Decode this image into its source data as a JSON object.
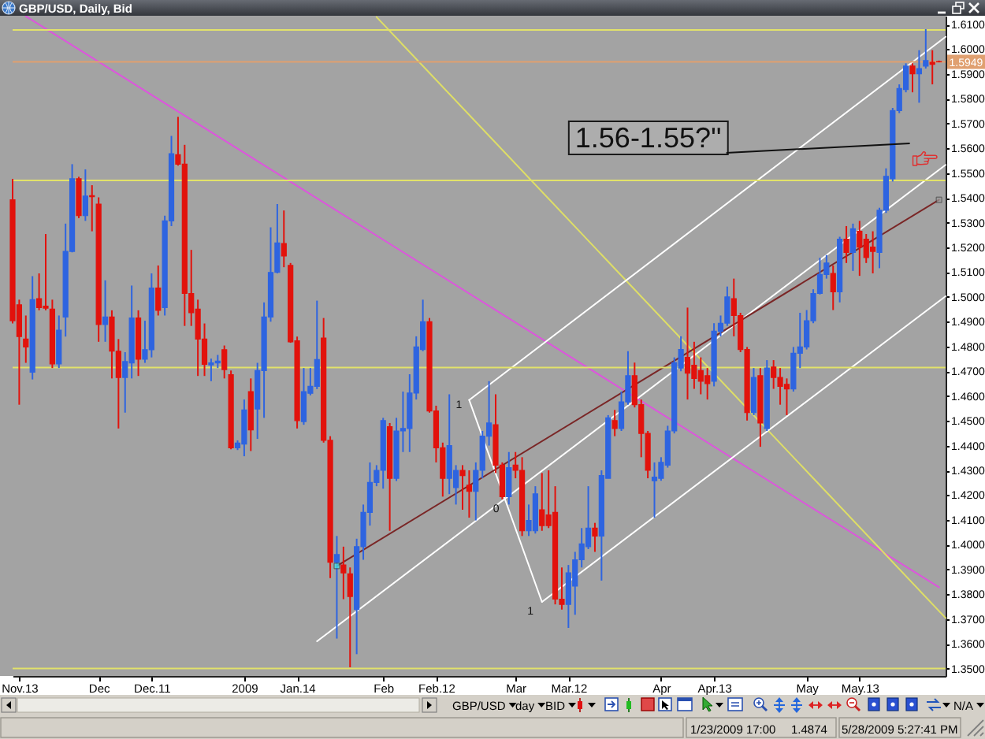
{
  "chart_data": {
    "type": "candlestick",
    "title": "GBP/USD, Daily, Bid",
    "categories": [
      null,
      "Nov.13",
      null,
      null,
      null,
      null,
      null,
      null,
      null,
      null,
      null,
      null,
      null,
      "Dec",
      null,
      null,
      null,
      null,
      null,
      null,
      null,
      "Dec.11",
      null,
      null,
      null,
      null,
      null,
      null,
      null,
      null,
      null,
      null,
      null,
      null,
      null,
      "2009",
      null,
      null,
      null,
      null,
      null,
      null,
      null,
      "Jan.14",
      null,
      null,
      null,
      null,
      null,
      null,
      null,
      null,
      null,
      null,
      null,
      null,
      "Feb",
      null,
      null,
      null,
      null,
      null,
      null,
      null,
      "Feb.12",
      null,
      null,
      null,
      null,
      null,
      null,
      null,
      null,
      null,
      null,
      null,
      "Mar",
      null,
      null,
      null,
      null,
      null,
      null,
      null,
      "Mar.12",
      null,
      null,
      null,
      null,
      null,
      null,
      null,
      null,
      null,
      null,
      null,
      null,
      null,
      "Apr",
      null,
      null,
      null,
      null,
      null,
      null,
      null,
      "Apr.13",
      null,
      null,
      null,
      null,
      null,
      null,
      null,
      null,
      null,
      null,
      null,
      null,
      null,
      "May",
      null,
      null,
      null,
      null,
      null,
      null,
      null,
      "May.13",
      null,
      null,
      null,
      null,
      null,
      null,
      null,
      null,
      null,
      null,
      null,
      null,
      null
    ],
    "ohlc": [
      [
        1.5392,
        1.5477,
        1.4893,
        1.4904
      ],
      [
        1.4968,
        1.4989,
        1.4565,
        1.484
      ],
      [
        1.483,
        1.4925,
        1.4734,
        1.4798
      ],
      [
        1.4696,
        1.5084,
        1.4667,
        1.4989
      ],
      [
        1.4993,
        1.5095,
        1.4946,
        1.4957
      ],
      [
        1.4963,
        1.5254,
        1.4946,
        1.4955
      ],
      [
        1.4951,
        1.4989,
        1.4713,
        1.473
      ],
      [
        1.473,
        1.4925,
        1.4713,
        1.4866
      ],
      [
        1.4919,
        1.5296,
        1.484,
        1.5184
      ],
      [
        1.5184,
        1.5536,
        1.518,
        1.5477
      ],
      [
        1.5477,
        1.5485,
        1.5318,
        1.5328
      ],
      [
        1.5328,
        1.5515,
        1.5307,
        1.5407
      ],
      [
        1.5409,
        1.5451,
        1.5265,
        1.5405
      ],
      [
        1.5375,
        1.5402,
        1.4819,
        1.4889
      ],
      [
        1.4889,
        1.5067,
        1.4819,
        1.4919
      ],
      [
        1.4919,
        1.4946,
        1.4671,
        1.4781
      ],
      [
        1.4781,
        1.483,
        1.4469,
        1.4675
      ],
      [
        1.4675,
        1.4777,
        1.4533,
        1.4739
      ],
      [
        1.4734,
        1.5046,
        1.4671,
        1.4915
      ],
      [
        1.4915,
        1.4946,
        1.4681,
        1.4749
      ],
      [
        1.4749,
        1.4904,
        1.4734,
        1.4787
      ],
      [
        1.4787,
        1.5095,
        1.4756,
        1.5036
      ],
      [
        1.5036,
        1.5127,
        1.4925,
        1.4946
      ],
      [
        1.4957,
        1.5328,
        1.4925,
        1.5307
      ],
      [
        1.5307,
        1.565,
        1.5286,
        1.5578
      ],
      [
        1.5574,
        1.5727,
        1.553,
        1.5536
      ],
      [
        1.5536,
        1.5614,
        1.4883,
        1.5014
      ],
      [
        1.5014,
        1.519,
        1.4883,
        1.4936
      ],
      [
        1.4951,
        1.4989,
        1.4681,
        1.483
      ],
      [
        1.483,
        1.4893,
        1.4681,
        1.4728
      ],
      [
        1.4726,
        1.4751,
        1.466,
        1.4734
      ],
      [
        1.4734,
        1.4766,
        1.4713,
        1.4741
      ],
      [
        1.4787,
        1.4804,
        1.4671,
        1.4707
      ],
      [
        1.4686,
        1.4703,
        1.4385,
        1.4391
      ],
      [
        1.4391,
        1.4421,
        1.4382,
        1.441
      ],
      [
        1.4406,
        1.4586,
        1.4357,
        1.4544
      ],
      [
        1.4618,
        1.4671,
        1.4378,
        1.4463
      ],
      [
        1.4548,
        1.4734,
        1.4427,
        1.4703
      ],
      [
        1.4703,
        1.4978,
        1.4512,
        1.4919
      ],
      [
        1.4919,
        1.5281,
        1.49,
        1.5099
      ],
      [
        1.5099,
        1.5375,
        1.5095,
        1.5218
      ],
      [
        1.5216,
        1.5349,
        1.512,
        1.5165
      ],
      [
        1.5127,
        1.5137,
        1.4815,
        1.4819
      ],
      [
        1.4823,
        1.484,
        1.4469,
        1.4501
      ],
      [
        1.4497,
        1.4713,
        1.4484,
        1.4618
      ],
      [
        1.4611,
        1.4713,
        1.4603,
        1.4639
      ],
      [
        1.4639,
        1.4985,
        1.4628,
        1.4747
      ],
      [
        1.4834,
        1.4915,
        1.4412,
        1.4421
      ],
      [
        1.4421,
        1.4438,
        1.3865,
        1.3929
      ],
      [
        1.3929,
        1.4035,
        1.3621,
        1.396
      ],
      [
        1.3918,
        1.3992,
        1.378,
        1.3886
      ],
      [
        1.3882,
        1.3908,
        1.3505,
        1.3791
      ],
      [
        1.3738,
        1.4024,
        1.3558,
        1.3992
      ],
      [
        1.3992,
        1.4162,
        1.3939,
        1.413
      ],
      [
        1.413,
        1.4332,
        1.4077,
        1.4251
      ],
      [
        1.4251,
        1.4321,
        1.4236,
        1.43
      ],
      [
        1.43,
        1.4512,
        1.4226,
        1.4501
      ],
      [
        1.4476,
        1.4491,
        1.4056,
        1.4268
      ],
      [
        1.4268,
        1.4512,
        1.4257,
        1.4459
      ],
      [
        1.4459,
        1.4618,
        1.4374,
        1.4469
      ],
      [
        1.4469,
        1.4688,
        1.4374,
        1.4612
      ],
      [
        1.4612,
        1.4841,
        1.4586,
        1.4798
      ],
      [
        1.4788,
        1.4989,
        1.4781,
        1.49
      ],
      [
        1.49,
        1.4915,
        1.4533,
        1.454
      ],
      [
        1.454,
        1.4561,
        1.4332,
        1.4391
      ],
      [
        1.4391,
        1.4412,
        1.4194,
        1.4268
      ],
      [
        1.4268,
        1.4607,
        1.4204,
        1.44
      ],
      [
        1.423,
        1.4321,
        1.4162,
        1.43
      ],
      [
        1.43,
        1.4321,
        1.4141,
        1.4279
      ],
      [
        1.424,
        1.43,
        1.4109,
        1.4215
      ],
      [
        1.4215,
        1.4332,
        1.4098,
        1.43
      ],
      [
        1.43,
        1.4459,
        1.4268,
        1.4438
      ],
      [
        1.4438,
        1.466,
        1.44,
        1.4491
      ],
      [
        1.4484,
        1.4607,
        1.4289,
        1.4321
      ],
      [
        1.4321,
        1.4332,
        1.4183,
        1.4194
      ],
      [
        1.4194,
        1.4374,
        1.4162,
        1.4311
      ],
      [
        1.4321,
        1.4374,
        1.4268,
        1.43
      ],
      [
        1.43,
        1.4353,
        1.4035,
        1.4056
      ],
      [
        1.4056,
        1.4162,
        1.4035,
        1.4098
      ],
      [
        1.4056,
        1.4236,
        1.4045,
        1.4205
      ],
      [
        1.4141,
        1.4289,
        1.4056,
        1.4077
      ],
      [
        1.412,
        1.43,
        1.4067,
        1.4077
      ],
      [
        1.413,
        1.4236,
        1.3759,
        1.378
      ],
      [
        1.378,
        1.3908,
        1.3738,
        1.3759
      ],
      [
        1.3759,
        1.3918,
        1.3664,
        1.3886
      ],
      [
        1.3833,
        1.3971,
        1.3717,
        1.3939
      ],
      [
        1.3939,
        1.4067,
        1.3908,
        1.4003
      ],
      [
        1.3992,
        1.4236,
        1.3982,
        1.4067
      ],
      [
        1.4067,
        1.4088,
        1.3971,
        1.4035
      ],
      [
        1.4035,
        1.43,
        1.3855,
        1.4279
      ],
      [
        1.4268,
        1.4523,
        1.4268,
        1.4512
      ],
      [
        1.4501,
        1.4544,
        1.4438,
        1.4469
      ],
      [
        1.4469,
        1.4618,
        1.4459,
        1.4576
      ],
      [
        1.4576,
        1.4781,
        1.4565,
        1.4682
      ],
      [
        1.4682,
        1.4735,
        1.4554,
        1.4565
      ],
      [
        1.4565,
        1.4586,
        1.4353,
        1.4449
      ],
      [
        1.4449,
        1.4459,
        1.4268,
        1.43
      ],
      [
        1.4258,
        1.4332,
        1.4109,
        1.4273
      ],
      [
        1.4268,
        1.4353,
        1.4258,
        1.4332
      ],
      [
        1.4321,
        1.448,
        1.4311,
        1.4459
      ],
      [
        1.4459,
        1.4756,
        1.4449,
        1.4735
      ],
      [
        1.4713,
        1.4841,
        1.47,
        1.4788
      ],
      [
        1.4756,
        1.4957,
        1.4586,
        1.4692
      ],
      [
        1.4724,
        1.4819,
        1.4629,
        1.4671
      ],
      [
        1.4703,
        1.4756,
        1.4607,
        1.466
      ],
      [
        1.4682,
        1.4713,
        1.4586,
        1.465
      ],
      [
        1.466,
        1.4894,
        1.4639,
        1.4862
      ],
      [
        1.4862,
        1.4925,
        1.4841,
        1.4894
      ],
      [
        1.4894,
        1.5042,
        1.4883,
        1.5
      ],
      [
        1.4993,
        1.5074,
        1.4841,
        1.4925
      ],
      [
        1.4925,
        1.4936,
        1.4777,
        1.4788
      ],
      [
        1.4788,
        1.4798,
        1.4501,
        1.4533
      ],
      [
        1.4533,
        1.4713,
        1.4523,
        1.4675
      ],
      [
        1.4682,
        1.4713,
        1.4395,
        1.4491
      ],
      [
        1.4469,
        1.4745,
        1.4459,
        1.4713
      ],
      [
        1.4717,
        1.4745,
        1.4629,
        1.4675
      ],
      [
        1.4675,
        1.4713,
        1.4565,
        1.4639
      ],
      [
        1.4647,
        1.4671,
        1.4523,
        1.4629
      ],
      [
        1.4629,
        1.4798,
        1.4618,
        1.4773
      ],
      [
        1.4773,
        1.4936,
        1.4713,
        1.4798
      ],
      [
        1.4798,
        1.4947,
        1.4788,
        1.4904
      ],
      [
        1.4904,
        1.5031,
        1.4894,
        1.5014
      ],
      [
        1.5014,
        1.5158,
        1.501,
        1.5091
      ],
      [
        1.5091,
        1.5169,
        1.5074,
        1.5137
      ],
      [
        1.5095,
        1.5127,
        1.4947,
        1.5021
      ],
      [
        1.5021,
        1.5243,
        1.4978,
        1.5233
      ],
      [
        1.5233,
        1.5286,
        1.5137,
        1.518
      ],
      [
        1.518,
        1.5296,
        1.5105,
        1.5275
      ],
      [
        1.5265,
        1.5307,
        1.5085,
        1.5201
      ],
      [
        1.5233,
        1.5254,
        1.5137,
        1.5159
      ],
      [
        1.5201,
        1.5265,
        1.5095,
        1.5184
      ],
      [
        1.518,
        1.536,
        1.5116,
        1.535
      ],
      [
        1.535,
        1.5519,
        1.5339,
        1.5487
      ],
      [
        1.5477,
        1.5763,
        1.5466,
        1.5752
      ],
      [
        1.5752,
        1.5858,
        1.5742,
        1.5841
      ],
      [
        1.5837,
        1.5943,
        1.5826,
        1.5932
      ],
      [
        1.5932,
        1.5943,
        1.5826,
        1.5901
      ],
      [
        1.5901,
        1.5996,
        1.5784,
        1.5922
      ],
      [
        1.5932,
        1.6081,
        1.5922,
        1.5954
      ],
      [
        1.5947,
        1.5996,
        1.5858,
        1.5939
      ],
      [
        1.595,
        1.5954,
        1.5947,
        1.5949
      ],
      null
    ],
    "colors": [
      "#e2120c",
      "#e2120c",
      "#e2120c",
      "#2e64e0",
      "#e2120c",
      "#e2120c",
      "#e2120c",
      "#2e64e0",
      "#2e64e0",
      "#2e64e0",
      "#e2120c",
      "#2e64e0",
      "#e2120c",
      "#e2120c",
      "#2e64e0",
      "#e2120c",
      "#e2120c",
      "#2e64e0",
      "#2e64e0",
      "#e2120c",
      "#2e64e0",
      "#2e64e0",
      "#e2120c",
      "#2e64e0",
      "#2e64e0",
      "#e2120c",
      "#e2120c",
      "#e2120c",
      "#e2120c",
      "#e2120c",
      "#2e64e0",
      "#2e64e0",
      "#e2120c",
      "#e2120c",
      "#2e64e0",
      "#2e64e0",
      "#e2120c",
      "#2e64e0",
      "#2e64e0",
      "#2e64e0",
      "#2e64e0",
      "#e2120c",
      "#e2120c",
      "#e2120c",
      "#2e64e0",
      "#2e64e0",
      "#2e64e0",
      "#e2120c",
      "#e2120c",
      "#2e64e0",
      "#e2120c",
      "#e2120c",
      "#2e64e0",
      "#2e64e0",
      "#2e64e0",
      "#2e64e0",
      "#2e64e0",
      "#e2120c",
      "#2e64e0",
      "#2e64e0",
      "#2e64e0",
      "#2e64e0",
      "#2e64e0",
      "#e2120c",
      "#e2120c",
      "#e2120c",
      "#2e64e0",
      "#2e64e0",
      "#e2120c",
      "#e2120c",
      "#2e64e0",
      "#2e64e0",
      "#2e64e0",
      "#e2120c",
      "#e2120c",
      "#2e64e0",
      "#e2120c",
      "#e2120c",
      "#2e64e0",
      "#2e64e0",
      "#e2120c",
      "#e2120c",
      "#e2120c",
      "#e2120c",
      "#2e64e0",
      "#2e64e0",
      "#2e64e0",
      "#2e64e0",
      "#e2120c",
      "#2e64e0",
      "#2e64e0",
      "#e2120c",
      "#2e64e0",
      "#2e64e0",
      "#e2120c",
      "#e2120c",
      "#e2120c",
      "#2e64e0",
      "#2e64e0",
      "#2e64e0",
      "#2e64e0",
      "#2e64e0",
      "#e2120c",
      "#e2120c",
      "#e2120c",
      "#e2120c",
      "#2e64e0",
      "#2e64e0",
      "#2e64e0",
      "#e2120c",
      "#e2120c",
      "#e2120c",
      "#2e64e0",
      "#e2120c",
      "#2e64e0",
      "#e2120c",
      "#e2120c",
      "#e2120c",
      "#2e64e0",
      "#2e64e0",
      "#2e64e0",
      "#2e64e0",
      "#2e64e0",
      "#2e64e0",
      "#e2120c",
      "#2e64e0",
      "#e2120c",
      "#2e64e0",
      "#e2120c",
      "#e2120c",
      "#e2120c",
      "#2e64e0",
      "#2e64e0",
      "#2e64e0",
      "#2e64e0",
      "#2e64e0",
      "#e2120c",
      "#2e64e0",
      "#2e64e0",
      "#e2120c",
      "#e2120c",
      null
    ],
    "ylim": [
      1.347,
      1.6135
    ],
    "yticks": [
      {
        "value": 1.35,
        "label": "1.3500"
      },
      {
        "value": 1.36,
        "label": "1.3600"
      },
      {
        "value": 1.37,
        "label": "1.3700"
      },
      {
        "value": 1.38,
        "label": "1.3800"
      },
      {
        "value": 1.39,
        "label": "1.3900"
      },
      {
        "value": 1.4,
        "label": "1.4000"
      },
      {
        "value": 1.41,
        "label": "1.4100"
      },
      {
        "value": 1.42,
        "label": "1.4200"
      },
      {
        "value": 1.43,
        "label": "1.4300"
      },
      {
        "value": 1.44,
        "label": "1.4400"
      },
      {
        "value": 1.45,
        "label": "1.4500"
      },
      {
        "value": 1.46,
        "label": "1.4600"
      },
      {
        "value": 1.47,
        "label": "1.4700"
      },
      {
        "value": 1.48,
        "label": "1.4800"
      },
      {
        "value": 1.49,
        "label": "1.4900"
      },
      {
        "value": 1.5,
        "label": "1.5000"
      },
      {
        "value": 1.51,
        "label": "1.5100"
      },
      {
        "value": 1.52,
        "label": "1.5200"
      },
      {
        "value": 1.53,
        "label": "1.5300"
      },
      {
        "value": 1.54,
        "label": "1.5400"
      },
      {
        "value": 1.55,
        "label": "1.5500"
      },
      {
        "value": 1.56,
        "label": "1.5600"
      },
      {
        "value": 1.57,
        "label": "1.5700"
      },
      {
        "value": 1.58,
        "label": "1.5800"
      },
      {
        "value": 1.59,
        "label": "1.5900"
      },
      {
        "value": 1.6,
        "label": "1.6000"
      },
      {
        "value": 1.61,
        "label": "1.6100"
      }
    ],
    "series": [
      {
        "type": "line",
        "color": "#dd55dd",
        "values": [
          null,
          null,
          1.6133,
          null,
          null,
          null,
          null,
          null,
          null,
          null,
          null,
          null,
          null,
          null,
          null,
          null,
          null,
          null,
          null,
          null,
          null,
          null,
          null,
          null,
          null,
          null,
          null,
          null,
          null,
          null,
          null,
          null,
          null,
          null,
          null,
          null,
          null,
          null,
          null,
          null,
          null,
          null,
          null,
          null,
          null,
          null,
          null,
          null,
          null,
          null,
          null,
          null,
          null,
          null,
          null,
          null,
          null,
          null,
          null,
          null,
          null,
          null,
          null,
          null,
          null,
          null,
          null,
          null,
          null,
          null,
          null,
          null,
          null,
          null,
          null,
          null,
          null,
          null,
          null,
          null,
          null,
          null,
          null,
          null,
          null,
          null,
          null,
          null,
          null,
          null,
          null,
          null,
          null,
          null,
          null,
          null,
          null,
          null,
          null,
          null,
          null,
          null,
          null,
          null,
          null,
          null,
          null,
          null,
          null,
          null,
          null,
          null,
          null,
          null,
          null,
          null,
          null,
          null,
          null,
          null,
          null,
          null,
          null,
          null,
          null,
          null,
          null,
          null,
          null,
          null,
          null,
          null,
          null,
          null,
          null,
          null,
          null,
          null,
          null,
          null,
          1.3828,
          null
        ]
      },
      {
        "type": "line",
        "color": "#dede66",
        "values": [
          null,
          null,
          null,
          null,
          null,
          null,
          null,
          null,
          null,
          null,
          null,
          null,
          null,
          null,
          null,
          null,
          null,
          null,
          null,
          null,
          null,
          null,
          null,
          null,
          null,
          null,
          null,
          null,
          null,
          null,
          null,
          null,
          null,
          null,
          null,
          null,
          null,
          null,
          null,
          null,
          null,
          null,
          null,
          null,
          null,
          null,
          null,
          null,
          null,
          null,
          null,
          null,
          null,
          null,
          null,
          1.613,
          null,
          null,
          null,
          null,
          null,
          null,
          null,
          null,
          null,
          null,
          null,
          null,
          null,
          null,
          null,
          null,
          null,
          null,
          null,
          null,
          null,
          null,
          null,
          null,
          null,
          null,
          null,
          null,
          null,
          null,
          null,
          null,
          null,
          null,
          null,
          null,
          null,
          null,
          null,
          null,
          null,
          null,
          null,
          null,
          null,
          null,
          null,
          null,
          null,
          null,
          null,
          null,
          null,
          null,
          null,
          null,
          null,
          null,
          null,
          null,
          null,
          null,
          null,
          null,
          null,
          null,
          null,
          null,
          null,
          null,
          null,
          null,
          null,
          null,
          null,
          null,
          null,
          null,
          null,
          null,
          null,
          null,
          null,
          null,
          null,
          1.3704
        ]
      },
      {
        "type": "line",
        "color": "#ffffff",
        "values": [
          null,
          null,
          null,
          null,
          null,
          null,
          null,
          null,
          null,
          null,
          null,
          null,
          null,
          null,
          null,
          null,
          null,
          null,
          null,
          null,
          null,
          null,
          null,
          null,
          null,
          null,
          null,
          null,
          null,
          null,
          null,
          null,
          null,
          null,
          null,
          null,
          null,
          null,
          null,
          null,
          null,
          null,
          null,
          null,
          null,
          null,
          null,
          null,
          null,
          null,
          null,
          null,
          null,
          null,
          null,
          null,
          null,
          null,
          null,
          null,
          null,
          null,
          null,
          null,
          null,
          null,
          null,
          null,
          null,
          1.4584,
          null,
          null,
          null,
          null,
          null,
          null,
          null,
          null,
          null,
          null,
          null,
          null,
          null,
          null,
          null,
          null,
          null,
          null,
          null,
          null,
          null,
          null,
          null,
          null,
          null,
          null,
          null,
          null,
          null,
          null,
          null,
          null,
          null,
          null,
          null,
          null,
          null,
          null,
          null,
          null,
          null,
          null,
          null,
          null,
          null,
          null,
          null,
          null,
          null,
          null,
          null,
          null,
          null,
          null,
          null,
          null,
          null,
          null,
          null,
          null,
          null,
          null,
          null,
          null,
          null,
          null,
          null,
          null,
          null,
          null,
          null,
          1.605
        ]
      },
      {
        "type": "line",
        "color": "#ffffff",
        "values": [
          null,
          null,
          null,
          null,
          null,
          null,
          null,
          null,
          null,
          null,
          null,
          null,
          null,
          null,
          null,
          null,
          null,
          null,
          null,
          null,
          null,
          null,
          null,
          null,
          null,
          null,
          null,
          null,
          null,
          null,
          null,
          null,
          null,
          null,
          null,
          null,
          null,
          null,
          null,
          null,
          null,
          null,
          null,
          null,
          null,
          null,
          1.361,
          null,
          null,
          null,
          null,
          null,
          null,
          null,
          null,
          null,
          null,
          null,
          null,
          null,
          null,
          null,
          null,
          null,
          null,
          null,
          null,
          null,
          null,
          null,
          null,
          null,
          null,
          null,
          null,
          null,
          null,
          null,
          null,
          null,
          null,
          null,
          null,
          null,
          null,
          null,
          null,
          null,
          null,
          null,
          null,
          null,
          null,
          null,
          null,
          null,
          null,
          null,
          null,
          null,
          null,
          null,
          null,
          null,
          null,
          null,
          null,
          null,
          null,
          null,
          null,
          null,
          null,
          null,
          null,
          null,
          null,
          null,
          null,
          null,
          null,
          null,
          null,
          null,
          null,
          null,
          null,
          null,
          null,
          null,
          null,
          null,
          null,
          null,
          null,
          null,
          null,
          null,
          null,
          null,
          null,
          1.5533
        ]
      },
      {
        "type": "line",
        "color": "#ffffff",
        "values": [
          null,
          null,
          null,
          null,
          null,
          null,
          null,
          null,
          null,
          null,
          null,
          null,
          null,
          null,
          null,
          null,
          null,
          null,
          null,
          null,
          null,
          null,
          null,
          null,
          null,
          null,
          null,
          null,
          null,
          null,
          null,
          null,
          null,
          null,
          null,
          null,
          null,
          null,
          null,
          null,
          null,
          null,
          null,
          null,
          null,
          null,
          null,
          null,
          null,
          null,
          null,
          null,
          null,
          null,
          null,
          null,
          null,
          null,
          null,
          null,
          null,
          null,
          null,
          null,
          null,
          null,
          null,
          null,
          null,
          null,
          null,
          null,
          null,
          null,
          null,
          null,
          null,
          null,
          null,
          null,
          1.3769,
          null,
          null,
          null,
          null,
          null,
          null,
          null,
          null,
          null,
          null,
          null,
          null,
          null,
          null,
          null,
          null,
          null,
          null,
          null,
          null,
          null,
          null,
          null,
          null,
          null,
          null,
          null,
          null,
          null,
          null,
          null,
          null,
          null,
          null,
          null,
          null,
          null,
          null,
          null,
          null,
          null,
          null,
          null,
          null,
          null,
          null,
          null,
          null,
          null,
          null,
          null,
          null,
          null,
          null,
          null,
          null,
          null,
          null,
          null,
          null,
          1.5003
        ]
      },
      {
        "type": "line",
        "color": "#ffffff",
        "values": [
          null,
          null,
          null,
          null,
          null,
          null,
          null,
          null,
          null,
          null,
          null,
          null,
          null,
          null,
          null,
          null,
          null,
          null,
          null,
          null,
          null,
          null,
          null,
          null,
          null,
          null,
          null,
          null,
          null,
          null,
          null,
          null,
          null,
          null,
          null,
          null,
          null,
          null,
          null,
          null,
          null,
          null,
          null,
          null,
          null,
          null,
          null,
          null,
          null,
          null,
          null,
          null,
          null,
          null,
          null,
          null,
          null,
          null,
          null,
          null,
          null,
          null,
          null,
          null,
          null,
          null,
          null,
          null,
          null,
          1.4584,
          null,
          null,
          null,
          null,
          null,
          null,
          null,
          null,
          null,
          null,
          1.3769,
          null,
          null,
          null,
          null,
          null,
          null,
          null,
          null,
          null,
          null,
          null,
          null,
          null,
          null,
          null,
          null,
          null,
          null,
          null,
          null,
          null,
          null,
          null,
          null,
          null,
          null,
          null,
          null,
          null,
          null,
          null,
          null,
          null,
          null,
          null,
          null,
          null,
          null,
          null,
          null,
          null,
          null,
          null,
          null,
          null,
          null,
          null,
          null,
          null,
          null,
          null,
          null,
          null,
          null,
          null,
          null,
          null,
          null,
          null,
          null,
          null
        ]
      },
      {
        "type": "line",
        "color": "#7a2626",
        "marker": "square",
        "values": [
          null,
          null,
          null,
          null,
          null,
          null,
          null,
          null,
          null,
          null,
          null,
          null,
          null,
          null,
          null,
          null,
          null,
          null,
          null,
          null,
          null,
          null,
          null,
          null,
          null,
          null,
          null,
          null,
          null,
          null,
          null,
          null,
          null,
          null,
          null,
          null,
          null,
          null,
          null,
          null,
          null,
          null,
          null,
          null,
          null,
          null,
          null,
          null,
          null,
          1.3914,
          null,
          null,
          null,
          null,
          null,
          null,
          null,
          null,
          null,
          null,
          null,
          null,
          null,
          null,
          null,
          null,
          null,
          null,
          null,
          null,
          null,
          null,
          null,
          null,
          null,
          null,
          null,
          null,
          null,
          null,
          null,
          null,
          null,
          null,
          null,
          null,
          null,
          null,
          null,
          null,
          null,
          null,
          null,
          null,
          null,
          null,
          null,
          null,
          null,
          null,
          null,
          null,
          null,
          null,
          null,
          null,
          null,
          null,
          null,
          null,
          null,
          null,
          null,
          null,
          null,
          null,
          null,
          null,
          null,
          null,
          null,
          null,
          null,
          null,
          null,
          null,
          null,
          null,
          null,
          null,
          null,
          null,
          null,
          null,
          null,
          null,
          null,
          null,
          null,
          null,
          1.5392,
          null
        ]
      }
    ],
    "ref_lines": [
      {
        "axis": "y",
        "value": 1.6078,
        "color": "#e2e26a"
      },
      {
        "axis": "y",
        "value": 1.5949,
        "label": "1.5949",
        "color": "#e0a070"
      },
      {
        "axis": "y",
        "value": 1.547,
        "color": "#e2e26a"
      },
      {
        "axis": "y",
        "value": 1.4715,
        "color": "#e2e26a"
      },
      {
        "axis": "y",
        "value": 1.35,
        "color": "#e2e26a"
      }
    ],
    "annotations": [
      "1.56-1.55?''",
      "1",
      "0",
      "1",
      "GBP/USD",
      "day",
      "BID",
      "N/A",
      "1/23/2009 17:00",
      "1.4874",
      "5/28/2009 5:27:41 PM"
    ]
  }
}
